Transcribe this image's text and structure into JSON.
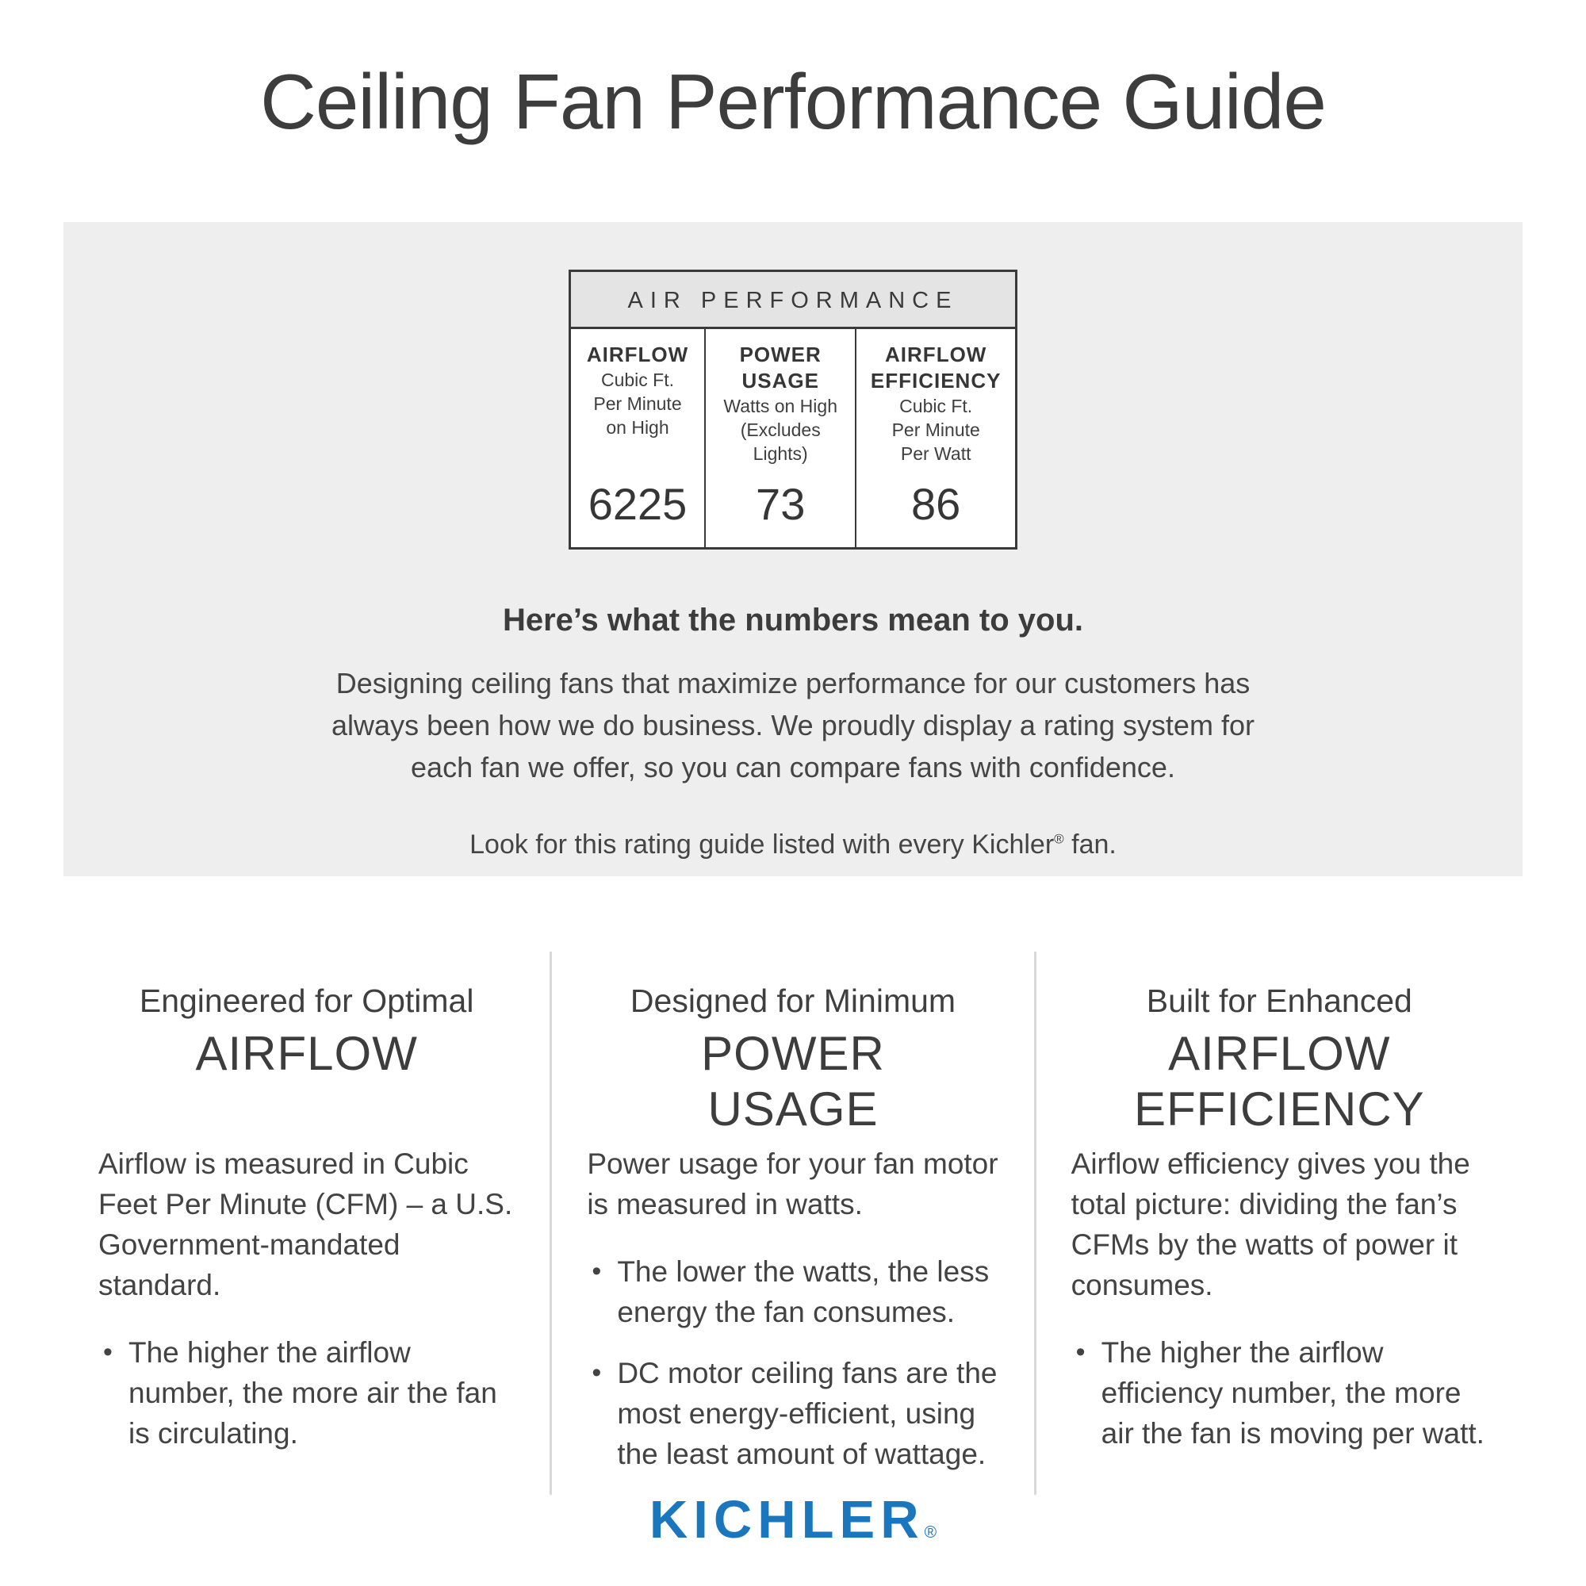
{
  "page": {
    "title": "Ceiling Fan Performance Guide"
  },
  "rating_table": {
    "header": "AIR PERFORMANCE",
    "columns": [
      {
        "title": "AIRFLOW",
        "subtitle_lines": [
          "Cubic Ft.",
          "Per Minute",
          "on High"
        ],
        "value": "6225"
      },
      {
        "title": "POWER USAGE",
        "subtitle_lines": [
          "Watts on High",
          "(Excludes",
          "Lights)"
        ],
        "value": "73"
      },
      {
        "title": "AIRFLOW EFFICIENCY",
        "subtitle_lines": [
          "Cubic Ft.",
          "Per Minute",
          "Per Watt"
        ],
        "value": "86"
      }
    ]
  },
  "intro": {
    "heading": "Here’s what the numbers mean to you.",
    "body_lines": [
      "Designing ceiling fans that maximize performance for our customers has",
      "always been how we do business. We proudly display a rating system for",
      "each fan we offer, so you can compare fans with confidence."
    ],
    "note_prefix": "Look for this rating guide listed with every Kichler",
    "note_reg": "®",
    "note_suffix": " fan."
  },
  "columns": [
    {
      "eyebrow": "Engineered for Optimal",
      "title": "AIRFLOW",
      "body": "Airflow is measured in Cubic Feet Per Minute (CFM) – a U.S. Government-mandated standard.",
      "bullets": [
        "The higher the airflow number, the more air the fan is circulating."
      ]
    },
    {
      "eyebrow": "Designed for Minimum",
      "title": "POWER USAGE",
      "body": "Power usage for your fan motor is measured in watts.",
      "bullets": [
        "The lower the watts, the less energy the fan consumes.",
        "DC motor ceiling fans are the most energy-efficient, using the least amount of wattage."
      ]
    },
    {
      "eyebrow": "Built for Enhanced",
      "title": "AIRFLOW EFFICIENCY",
      "body": "Airflow efficiency gives you the total picture: dividing the fan’s CFMs by the watts of power it consumes.",
      "bullets": [
        "The higher the airflow efficiency number, the more air the fan is moving per watt."
      ]
    }
  ],
  "logo": {
    "text": "KICHLER",
    "reg": "®"
  },
  "colors": {
    "accent_blue": "#1b77bd",
    "panel_gray": "#eeeeee",
    "table_header_gray": "#e4e4e4",
    "border_dark": "#3a3a3a",
    "text_dark": "#3d3d3d",
    "divider": "#d9d9d9"
  }
}
